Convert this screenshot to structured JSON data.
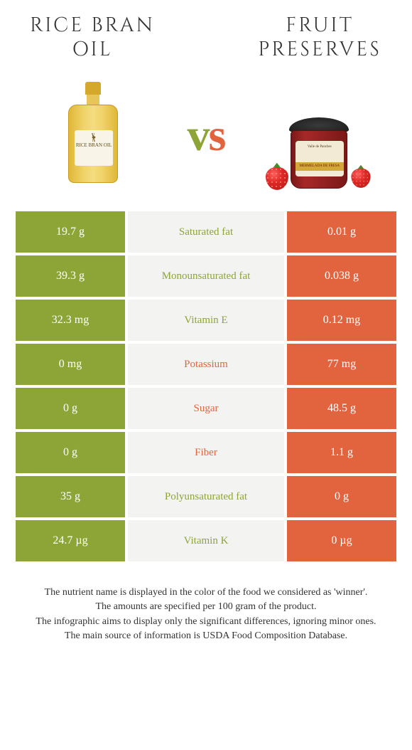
{
  "titles": {
    "left": "Rice bran oil",
    "right": "Fruit preserves"
  },
  "vs": {
    "v": "v",
    "s": "s"
  },
  "colors": {
    "left": "#8da536",
    "right": "#e2643f",
    "mid_bg": "#f3f3f1",
    "text_dark": "#333333"
  },
  "product_labels": {
    "oil": "RICE BRAN\nOIL",
    "jam_top": "Valle de Pancbes",
    "jam_band": "MERMELADA DE FRESA"
  },
  "rows": [
    {
      "left": "19.7 g",
      "label": "Saturated fat",
      "right": "0.01 g",
      "winner": "left"
    },
    {
      "left": "39.3 g",
      "label": "Monounsaturated fat",
      "right": "0.038 g",
      "winner": "left"
    },
    {
      "left": "32.3 mg",
      "label": "Vitamin E",
      "right": "0.12 mg",
      "winner": "left"
    },
    {
      "left": "0 mg",
      "label": "Potassium",
      "right": "77 mg",
      "winner": "right"
    },
    {
      "left": "0 g",
      "label": "Sugar",
      "right": "48.5 g",
      "winner": "right"
    },
    {
      "left": "0 g",
      "label": "Fiber",
      "right": "1.1 g",
      "winner": "right"
    },
    {
      "left": "35 g",
      "label": "Polyunsaturated fat",
      "right": "0 g",
      "winner": "left"
    },
    {
      "left": "24.7 µg",
      "label": "Vitamin K",
      "right": "0 µg",
      "winner": "left"
    }
  ],
  "footer": [
    "The nutrient name is displayed in the color of the food we considered as 'winner'.",
    "The amounts are specified per 100 gram of the product.",
    "The infographic aims to display only the significant differences, ignoring minor ones.",
    "The main source of information is USDA Food Composition Database."
  ]
}
